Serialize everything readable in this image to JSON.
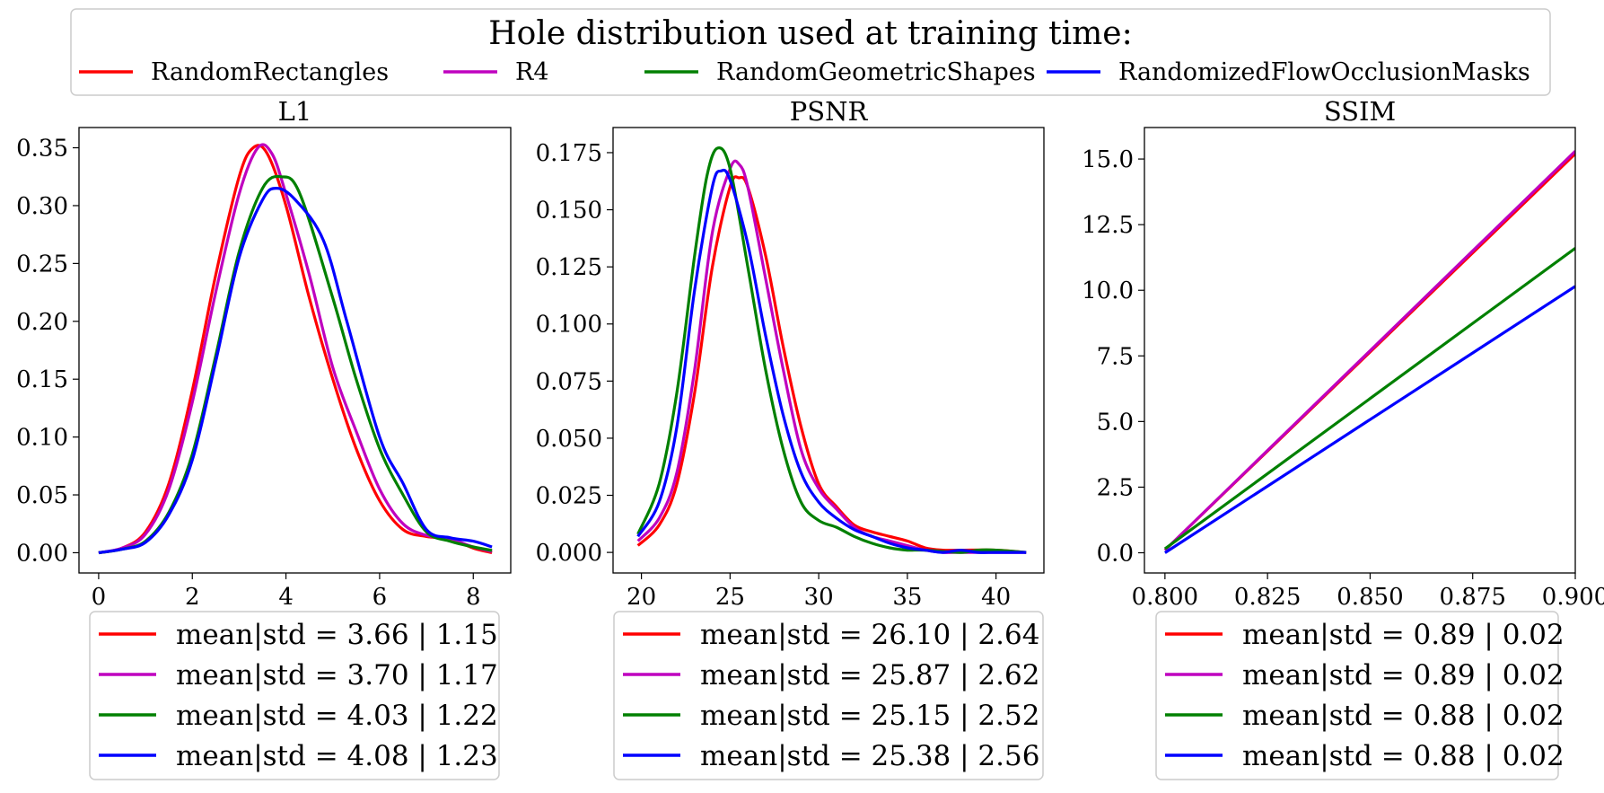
{
  "figure_title": "Hole distribution used at training time:",
  "legend": [
    {
      "label": "RandomRectangles",
      "color": "#ff0000"
    },
    {
      "label": "R4",
      "color": "#bf00bf"
    },
    {
      "label": "RandomGeometricShapes",
      "color": "#008000"
    },
    {
      "label": "RandomizedFlowOcclusionMasks",
      "color": "#0000ff"
    }
  ],
  "chart_data": [
    {
      "type": "line",
      "title": "L1",
      "xlim": [
        -0.42,
        8.8
      ],
      "ylim": [
        -0.0175,
        0.3675
      ],
      "xticks": [
        0,
        2,
        4,
        6,
        8
      ],
      "xtick_labels": [
        "0",
        "2",
        "4",
        "6",
        "8"
      ],
      "yticks": [
        0,
        0.05,
        0.1,
        0.15,
        0.2,
        0.25,
        0.3,
        0.35
      ],
      "ytick_labels": [
        "0.00",
        "0.05",
        "0.10",
        "0.15",
        "0.20",
        "0.25",
        "0.30",
        "0.35"
      ],
      "series": [
        {
          "name": "RandomRectangles",
          "color": "#ff0000",
          "x": [
            0,
            0.5,
            1,
            1.5,
            2,
            2.5,
            3,
            3.3,
            3.6,
            4,
            4.5,
            5,
            5.5,
            6,
            6.5,
            7,
            7.5,
            8,
            8.4
          ],
          "y": [
            0,
            0.004,
            0.018,
            0.06,
            0.14,
            0.24,
            0.325,
            0.35,
            0.345,
            0.3,
            0.22,
            0.15,
            0.09,
            0.045,
            0.02,
            0.014,
            0.012,
            0.004,
            0.0
          ]
        },
        {
          "name": "R4",
          "color": "#bf00bf",
          "x": [
            0,
            0.5,
            1,
            1.5,
            2,
            2.5,
            3,
            3.4,
            3.7,
            4,
            4.5,
            5,
            5.5,
            6,
            6.5,
            7,
            7.5,
            8,
            8.4
          ],
          "y": [
            0,
            0.004,
            0.016,
            0.055,
            0.13,
            0.225,
            0.31,
            0.35,
            0.345,
            0.31,
            0.24,
            0.16,
            0.105,
            0.055,
            0.025,
            0.015,
            0.012,
            0.005,
            0.001
          ]
        },
        {
          "name": "RandomGeometricShapes",
          "color": "#008000",
          "x": [
            0,
            0.5,
            1,
            1.5,
            2,
            2.5,
            3,
            3.5,
            3.9,
            4.3,
            5,
            5.5,
            6,
            6.5,
            7,
            7.5,
            8,
            8.4
          ],
          "y": [
            0,
            0.003,
            0.01,
            0.035,
            0.085,
            0.17,
            0.26,
            0.315,
            0.325,
            0.31,
            0.22,
            0.15,
            0.09,
            0.05,
            0.018,
            0.01,
            0.005,
            0.002
          ]
        },
        {
          "name": "RandomizedFlowOcclusionMasks",
          "color": "#0000ff",
          "x": [
            0,
            0.5,
            1,
            1.5,
            2,
            2.5,
            3,
            3.5,
            3.8,
            4.2,
            4.8,
            5.3,
            6,
            6.5,
            7,
            7.5,
            8,
            8.4
          ],
          "y": [
            0,
            0.003,
            0.009,
            0.033,
            0.08,
            0.165,
            0.255,
            0.305,
            0.315,
            0.305,
            0.27,
            0.2,
            0.1,
            0.06,
            0.02,
            0.013,
            0.01,
            0.005
          ]
        }
      ],
      "stats": [
        {
          "text": "mean|std = 3.66 | 1.15",
          "color": "#ff0000"
        },
        {
          "text": "mean|std = 3.70 | 1.17",
          "color": "#bf00bf"
        },
        {
          "text": "mean|std = 4.03 | 1.22",
          "color": "#008000"
        },
        {
          "text": "mean|std = 4.08 | 1.23",
          "color": "#0000ff"
        }
      ]
    },
    {
      "type": "line",
      "title": "PSNR",
      "xlim": [
        18.4,
        42.7
      ],
      "ylim": [
        -0.009,
        0.186
      ],
      "xticks": [
        20,
        25,
        30,
        35,
        40
      ],
      "xtick_labels": [
        "20",
        "25",
        "30",
        "35",
        "40"
      ],
      "yticks": [
        0,
        0.025,
        0.05,
        0.075,
        0.1,
        0.125,
        0.15,
        0.175
      ],
      "ytick_labels": [
        "0.000",
        "0.025",
        "0.050",
        "0.075",
        "0.100",
        "0.125",
        "0.150",
        "0.175"
      ],
      "series": [
        {
          "name": "RandomRectangles",
          "color": "#ff0000",
          "x": [
            19.8,
            21,
            22,
            23,
            24,
            25,
            25.5,
            26,
            27,
            28,
            29,
            30,
            31,
            32,
            33,
            34,
            35,
            36,
            37,
            38,
            40,
            41.7
          ],
          "y": [
            0.003,
            0.012,
            0.03,
            0.07,
            0.125,
            0.16,
            0.164,
            0.16,
            0.13,
            0.09,
            0.055,
            0.03,
            0.02,
            0.012,
            0.009,
            0.007,
            0.005,
            0.002,
            0.001,
            0.001,
            0.001,
            0.0
          ]
        },
        {
          "name": "R4",
          "color": "#bf00bf",
          "x": [
            19.8,
            21,
            22,
            23,
            24,
            25,
            25.5,
            26,
            27,
            28,
            29,
            30,
            31,
            32,
            33,
            34,
            35,
            36,
            37,
            38,
            40,
            41.7
          ],
          "y": [
            0.005,
            0.015,
            0.035,
            0.08,
            0.14,
            0.168,
            0.17,
            0.16,
            0.12,
            0.08,
            0.045,
            0.028,
            0.019,
            0.011,
            0.007,
            0.005,
            0.003,
            0.001,
            0.0,
            0.0,
            0.0,
            0.0
          ]
        },
        {
          "name": "RandomGeometricShapes",
          "color": "#008000",
          "x": [
            19.8,
            21,
            22,
            23,
            23.7,
            24.3,
            25,
            26,
            27,
            28,
            29,
            30,
            31,
            32,
            33,
            34,
            35,
            36,
            38,
            39,
            40,
            41.7
          ],
          "y": [
            0.008,
            0.03,
            0.07,
            0.13,
            0.165,
            0.177,
            0.168,
            0.125,
            0.08,
            0.045,
            0.022,
            0.014,
            0.011,
            0.007,
            0.004,
            0.002,
            0.001,
            0.001,
            0.0,
            0.001,
            0.001,
            0.0
          ]
        },
        {
          "name": "RandomizedFlowOcclusionMasks",
          "color": "#0000ff",
          "x": [
            19.8,
            21,
            22,
            23,
            24,
            24.5,
            25,
            26,
            27,
            28,
            29,
            30,
            31,
            32,
            33,
            34,
            35,
            36,
            37,
            38,
            39,
            40,
            41.7
          ],
          "y": [
            0.007,
            0.022,
            0.055,
            0.115,
            0.16,
            0.167,
            0.163,
            0.135,
            0.095,
            0.06,
            0.035,
            0.022,
            0.015,
            0.01,
            0.007,
            0.004,
            0.002,
            0.001,
            0.0,
            0.001,
            0.0,
            0.0,
            0.0
          ]
        }
      ],
      "stats": [
        {
          "text": "mean|std = 26.10 | 2.64",
          "color": "#ff0000"
        },
        {
          "text": "mean|std = 25.87 | 2.62",
          "color": "#bf00bf"
        },
        {
          "text": "mean|std = 25.15 | 2.52",
          "color": "#008000"
        },
        {
          "text": "mean|std = 25.38 | 2.56",
          "color": "#0000ff"
        }
      ]
    },
    {
      "type": "line",
      "title": "SSIM",
      "xlim": [
        0.795,
        0.9
      ],
      "ylim": [
        -0.77,
        16.2
      ],
      "xticks": [
        0.8,
        0.825,
        0.85,
        0.875,
        0.9
      ],
      "xtick_labels": [
        "0.800",
        "0.825",
        "0.850",
        "0.875",
        "0.900"
      ],
      "yticks": [
        0,
        2.5,
        5,
        7.5,
        10,
        12.5,
        15
      ],
      "ytick_labels": [
        "0.0",
        "2.5",
        "5.0",
        "7.5",
        "10.0",
        "12.5",
        "15.0"
      ],
      "series": [
        {
          "name": "RandomRectangles",
          "color": "#ff0000",
          "x": [
            0.8,
            0.9
          ],
          "y": [
            0.1,
            15.2
          ]
        },
        {
          "name": "R4",
          "color": "#bf00bf",
          "x": [
            0.8,
            0.9
          ],
          "y": [
            0.1,
            15.3
          ]
        },
        {
          "name": "RandomGeometricShapes",
          "color": "#008000",
          "x": [
            0.8,
            0.9
          ],
          "y": [
            0.15,
            11.6
          ]
        },
        {
          "name": "RandomizedFlowOcclusionMasks",
          "color": "#0000ff",
          "x": [
            0.8,
            0.9
          ],
          "y": [
            0.0,
            10.15
          ]
        }
      ],
      "stats": [
        {
          "text": "mean|std = 0.89 | 0.02",
          "color": "#ff0000"
        },
        {
          "text": "mean|std = 0.89 | 0.02",
          "color": "#bf00bf"
        },
        {
          "text": "mean|std = 0.88 | 0.02",
          "color": "#008000"
        },
        {
          "text": "mean|std = 0.88 | 0.02",
          "color": "#0000ff"
        }
      ]
    }
  ]
}
